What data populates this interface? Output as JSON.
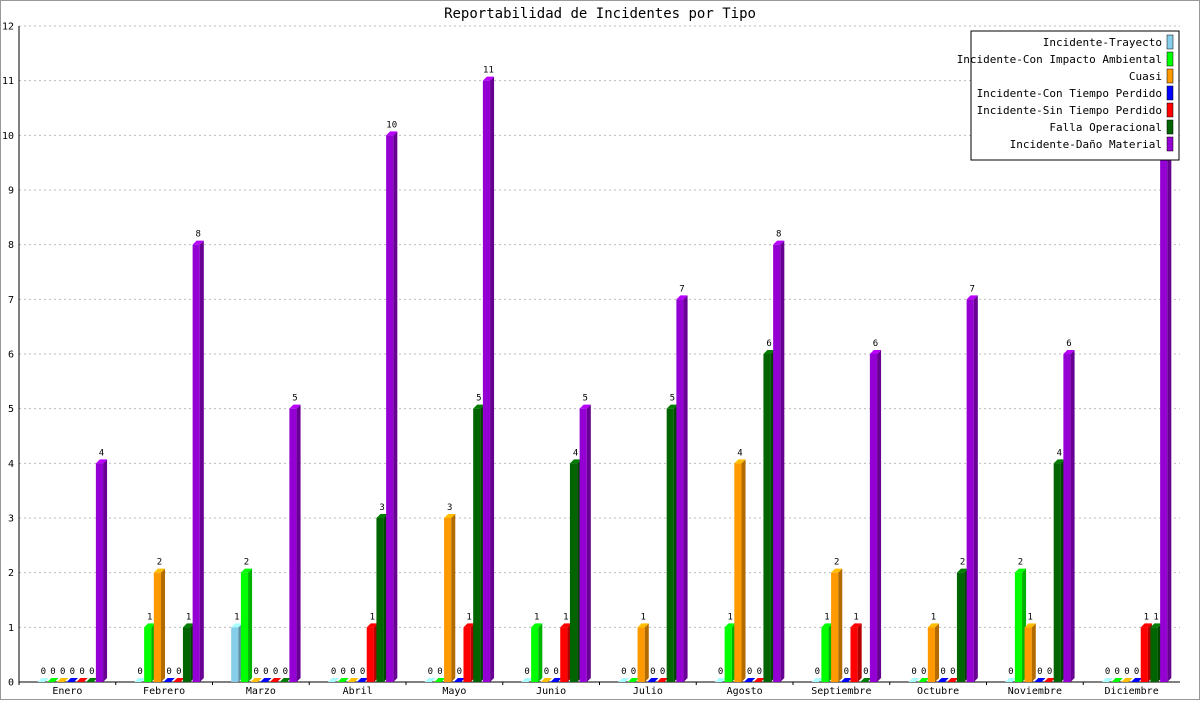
{
  "chart_data": {
    "type": "bar",
    "title": "Reportabilidad de Incidentes por Tipo",
    "xlabel": "",
    "ylabel": "",
    "ylim": [
      0,
      12
    ],
    "yticks": [
      0,
      1,
      2,
      3,
      4,
      5,
      6,
      7,
      8,
      9,
      10,
      11,
      12
    ],
    "grid": true,
    "legend_position": "top-right",
    "categories": [
      "Enero",
      "Febrero",
      "Marzo",
      "Abril",
      "Mayo",
      "Junio",
      "Julio",
      "Agosto",
      "Septiembre",
      "Octubre",
      "Noviembre",
      "Diciembre"
    ],
    "series": [
      {
        "name": "Incidente-Trayecto",
        "color": "#87ceeb",
        "values": [
          0,
          0,
          1,
          0,
          0,
          0,
          0,
          0,
          0,
          0,
          0,
          0
        ]
      },
      {
        "name": "Incidente-Con Impacto Ambiental",
        "color": "#00ff00",
        "values": [
          0,
          1,
          2,
          0,
          0,
          1,
          0,
          1,
          1,
          0,
          2,
          0
        ]
      },
      {
        "name": "Cuasi",
        "color": "#ff9900",
        "values": [
          0,
          2,
          0,
          0,
          3,
          0,
          1,
          4,
          2,
          1,
          1,
          0
        ]
      },
      {
        "name": "Incidente-Con Tiempo Perdido",
        "color": "#0000ff",
        "values": [
          0,
          0,
          0,
          0,
          0,
          0,
          0,
          0,
          0,
          0,
          0,
          0
        ]
      },
      {
        "name": "Incidente-Sin Tiempo Perdido",
        "color": "#ff0000",
        "values": [
          0,
          0,
          0,
          1,
          1,
          1,
          0,
          0,
          1,
          0,
          0,
          1
        ]
      },
      {
        "name": "Falla Operacional",
        "color": "#006400",
        "values": [
          0,
          1,
          0,
          3,
          5,
          4,
          5,
          6,
          0,
          2,
          4,
          1
        ]
      },
      {
        "name": "Incidente-Daño Material",
        "color": "#9400d3",
        "values": [
          4,
          8,
          5,
          10,
          11,
          5,
          7,
          8,
          6,
          7,
          6,
          10
        ]
      }
    ]
  }
}
